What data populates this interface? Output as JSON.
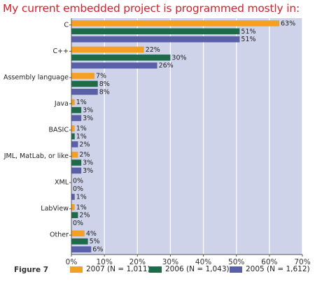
{
  "title": "My current embedded project is programmed mostly in:",
  "figure_label": "Figure 7",
  "colors": {
    "s2007": "#f5a023",
    "s2006": "#1e6b4a",
    "s2005": "#5960a8",
    "plot_bg": "#cfd3ea",
    "grid": "#ffffff"
  },
  "chart_data": {
    "type": "bar",
    "orientation": "horizontal",
    "title": "My current embedded project is programmed mostly in:",
    "categories": [
      "C",
      "C++",
      "Assembly language",
      "Java",
      "BASIC",
      "JML, MatLab, or like",
      "XML",
      "LabView",
      "Other"
    ],
    "series": [
      {
        "name": "2007 (N = 1,011)",
        "color": "#f5a023",
        "values": [
          63,
          22,
          7,
          1,
          1,
          2,
          0,
          1,
          4
        ]
      },
      {
        "name": "2006 (N = 1,043)",
        "color": "#1e6b4a",
        "values": [
          51,
          30,
          8,
          3,
          1,
          3,
          0,
          2,
          5
        ]
      },
      {
        "name": "2005 (N = 1,612)",
        "color": "#5960a8",
        "values": [
          51,
          26,
          8,
          3,
          2,
          3,
          1,
          0,
          6
        ]
      }
    ],
    "xlim": [
      0,
      70
    ],
    "xticks": [
      0,
      10,
      20,
      30,
      40,
      50,
      60,
      70
    ],
    "xtick_labels": [
      "0%",
      "10%",
      "20%",
      "30%",
      "40%",
      "50%",
      "60%",
      "70%"
    ],
    "value_suffix": "%",
    "grid": true,
    "legend_position": "bottom"
  }
}
